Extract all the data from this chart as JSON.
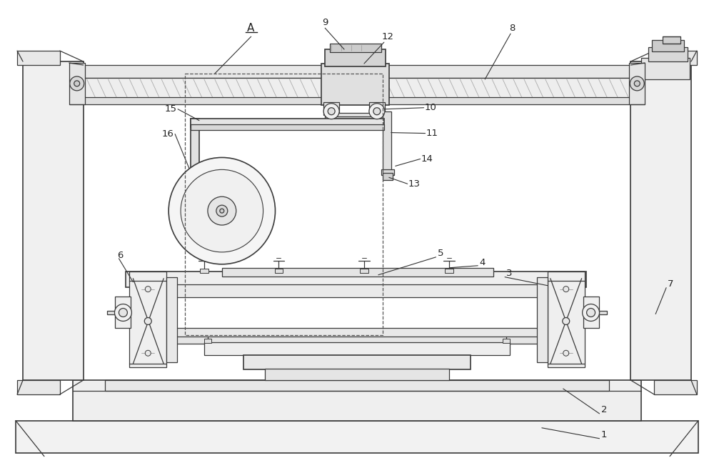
{
  "bg_color": "#ffffff",
  "lc": "#3a3a3a",
  "lc_light": "#888888",
  "fig_width": 10.0,
  "fig_height": 6.41
}
